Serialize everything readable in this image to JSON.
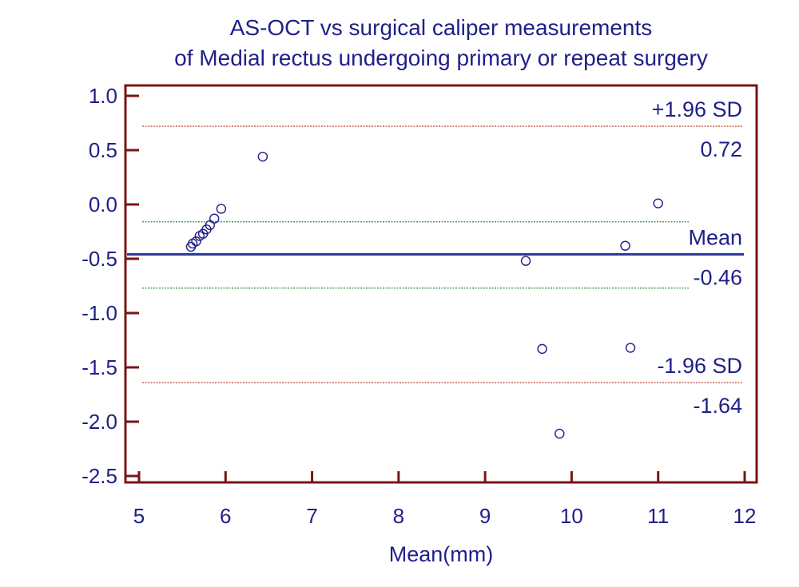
{
  "chart_data": {
    "type": "scatter",
    "title_lines": [
      "AS-OCT vs surgical caliper measurements",
      "of Medial rectus undergoing primary or repeat surgery"
    ],
    "xlabel": "Mean(mm)",
    "ylabel": "",
    "xlim": [
      5,
      12
    ],
    "ylim": [
      -2.6,
      1.1
    ],
    "xticks": [
      5,
      6,
      7,
      8,
      9,
      10,
      11,
      12
    ],
    "xtick_labels": [
      "5",
      "6",
      "7",
      "8",
      "9",
      "10",
      "11",
      "12"
    ],
    "yticks": [
      1.0,
      0.5,
      0.0,
      -0.5,
      -1.0,
      -1.5,
      -2.0,
      -2.5
    ],
    "ytick_labels": [
      "1.0",
      "0.5",
      "0.0",
      "-0.5",
      "-1.0",
      "-1.5",
      "-2.0",
      "-2.5"
    ],
    "points": [
      {
        "x": 5.6,
        "y": -0.39
      },
      {
        "x": 5.62,
        "y": -0.36
      },
      {
        "x": 5.66,
        "y": -0.34
      },
      {
        "x": 5.7,
        "y": -0.29
      },
      {
        "x": 5.74,
        "y": -0.27
      },
      {
        "x": 5.78,
        "y": -0.23
      },
      {
        "x": 5.82,
        "y": -0.19
      },
      {
        "x": 5.87,
        "y": -0.13
      },
      {
        "x": 5.95,
        "y": -0.04
      },
      {
        "x": 6.43,
        "y": 0.44
      },
      {
        "x": 9.47,
        "y": -0.52
      },
      {
        "x": 9.66,
        "y": -1.33
      },
      {
        "x": 9.86,
        "y": -2.11
      },
      {
        "x": 10.62,
        "y": -0.38
      },
      {
        "x": 10.68,
        "y": -1.32
      },
      {
        "x": 11.0,
        "y": 0.01
      }
    ],
    "reference_lines": {
      "upper_loa": {
        "value": 0.72,
        "label": "+1.96 SD",
        "value_label": "0.72",
        "color": "#c0504d",
        "style": "dotted"
      },
      "upper_ci": {
        "value": -0.16,
        "color": "#2e8b3a",
        "style": "dotted"
      },
      "mean": {
        "value": -0.46,
        "label": "Mean",
        "value_label": "-0.46",
        "color": "#2b3a9e",
        "style": "solid"
      },
      "lower_ci": {
        "value": -0.77,
        "color": "#2e8b3a",
        "style": "dotted"
      },
      "lower_loa": {
        "value": -1.64,
        "label": "-1.96 SD",
        "value_label": "-1.64",
        "color": "#c0504d",
        "style": "dotted"
      }
    },
    "colors": {
      "text": "#1f1f8a",
      "frame": "#7a1414",
      "marker": "#1f1f8a"
    }
  }
}
